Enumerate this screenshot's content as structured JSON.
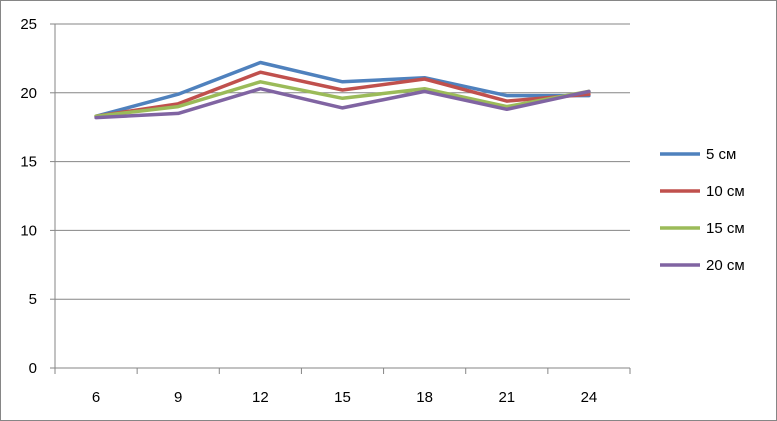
{
  "chart_data": {
    "type": "line",
    "title": "",
    "xlabel": "",
    "ylabel": "",
    "x": [
      6,
      9,
      12,
      15,
      18,
      21,
      24
    ],
    "ylim": [
      0,
      25
    ],
    "yticks": [
      0,
      5,
      10,
      15,
      20,
      25
    ],
    "grid": "horizontal",
    "legend": "right",
    "series": [
      {
        "name": "5 см",
        "color": "#4F81BD",
        "values": [
          18.3,
          19.9,
          22.2,
          20.8,
          21.1,
          19.8,
          19.8
        ]
      },
      {
        "name": "10 см",
        "color": "#C0504D",
        "values": [
          18.3,
          19.2,
          21.5,
          20.2,
          21.0,
          19.4,
          19.9
        ]
      },
      {
        "name": "15 см",
        "color": "#9BBB59",
        "values": [
          18.3,
          19.0,
          20.8,
          19.6,
          20.3,
          19.0,
          20.1
        ]
      },
      {
        "name": "20 см",
        "color": "#8064A2",
        "values": [
          18.2,
          18.5,
          20.3,
          18.9,
          20.1,
          18.8,
          20.1
        ]
      }
    ]
  }
}
